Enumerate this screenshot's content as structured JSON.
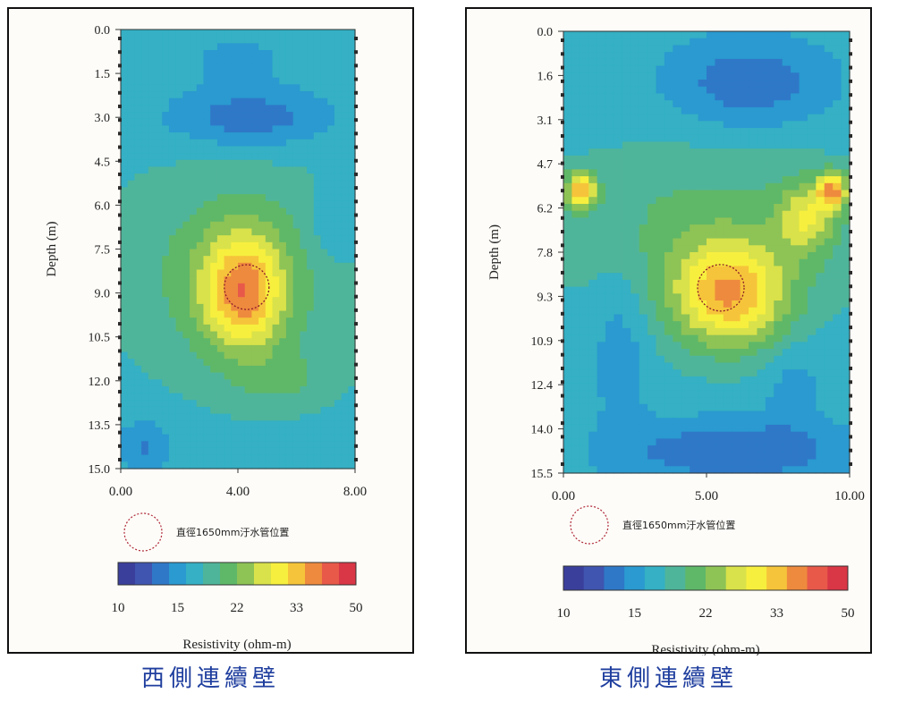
{
  "chart_data": [
    {
      "type": "heatmap",
      "caption": "西側連續壁",
      "ylabel": "Depth (m)",
      "yticks": [
        "0.0",
        "1.5",
        "3.0",
        "4.5",
        "6.0",
        "7.5",
        "9.0",
        "10.5",
        "12.0",
        "13.5",
        "15.0"
      ],
      "ylim": [
        0,
        15
      ],
      "xticks": [
        "0.00",
        "4.00",
        "8.00"
      ],
      "xlim": [
        0,
        8
      ],
      "pipe_label": "直徑1650mm汙水管位置",
      "pipe_center": {
        "x": 4.3,
        "depth": 8.8
      },
      "colorbar": {
        "ticks": [
          "10",
          "15",
          "22",
          "33",
          "50"
        ],
        "label": "Resistivity (ohm-m)"
      }
    },
    {
      "type": "heatmap",
      "caption": "東側連續壁",
      "ylabel": "Depth (m)",
      "yticks": [
        "0.0",
        "1.6",
        "3.1",
        "4.7",
        "6.2",
        "7.8",
        "9.3",
        "10.9",
        "12.4",
        "14.0",
        "15.5"
      ],
      "ylim": [
        0,
        15.5
      ],
      "xticks": [
        "0.00",
        "5.00",
        "10.00"
      ],
      "xlim": [
        0,
        10
      ],
      "pipe_label": "直徑1650mm汙水管位置",
      "pipe_center": {
        "x": 5.5,
        "depth": 9.0
      },
      "colorbar": {
        "ticks": [
          "10",
          "15",
          "22",
          "33",
          "50"
        ],
        "label": "Resistivity (ohm-m)"
      }
    }
  ],
  "colors": {
    "palette": [
      "#3b3f9c",
      "#3f55b0",
      "#2f78c8",
      "#2a9ad0",
      "#35b0c4",
      "#4fb59a",
      "#5fb868",
      "#8ec356",
      "#d9e24a",
      "#f7ef3e",
      "#f6c43a",
      "#ee8a3e",
      "#e8594a",
      "#d93646"
    ]
  }
}
